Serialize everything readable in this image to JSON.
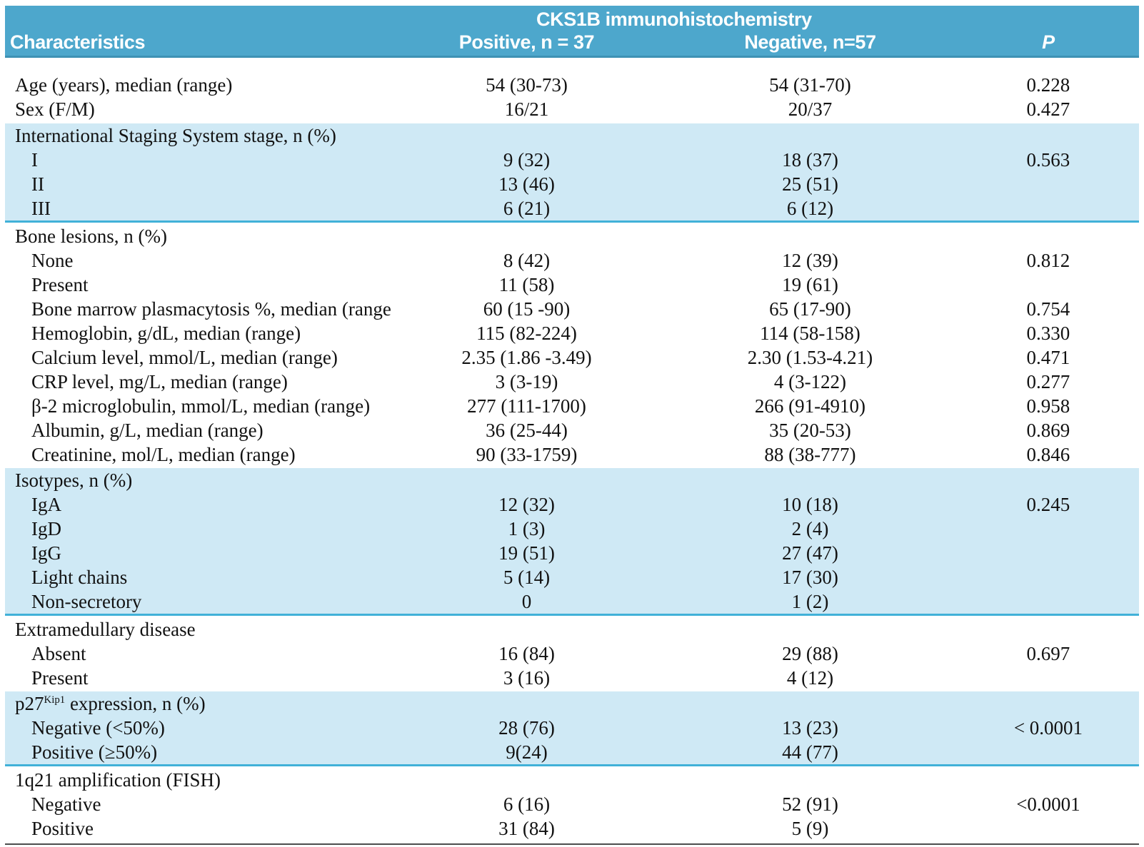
{
  "table": {
    "header": {
      "group_title": "CKS1B immunohistochemistry",
      "col_characteristics": "Characteristics",
      "col_positive": "Positive, n = 37",
      "col_negative": "Negative, n=57",
      "col_p": "P"
    },
    "colors": {
      "header_bg": "#4da7cc",
      "header_edge": "#3e92b4",
      "band_bg": "#cfe9f5",
      "band_edge": "#41b1d8",
      "text": "#121212"
    },
    "sections": [
      {
        "tone": "white",
        "rows": [
          {
            "label": "Age (years), median (range)",
            "indent": 0,
            "positive": "54 (30-73)",
            "negative": "54 (31-70)",
            "p": "0.228"
          },
          {
            "label": "Sex (F/M)",
            "indent": 0,
            "positive": "16/21",
            "negative": "20/37",
            "p": "0.427"
          }
        ]
      },
      {
        "tone": "blue",
        "rows": [
          {
            "label": "International Staging System stage, n (%)",
            "indent": 0,
            "positive": "",
            "negative": "",
            "p": ""
          },
          {
            "label": "I",
            "indent": 1,
            "positive": "9 (32)",
            "negative": "18 (37)",
            "p": "0.563"
          },
          {
            "label": "II",
            "indent": 1,
            "positive": "13 (46)",
            "negative": "25 (51)",
            "p": ""
          },
          {
            "label": "III",
            "indent": 1,
            "positive": "6 (21)",
            "negative": "6 (12)",
            "p": ""
          }
        ]
      },
      {
        "tone": "white",
        "rows": [
          {
            "label": "Bone lesions, n (%)",
            "indent": 0,
            "positive": "",
            "negative": "",
            "p": ""
          },
          {
            "label": "None",
            "indent": 1,
            "positive": "8 (42)",
            "negative": "12 (39)",
            "p": "0.812"
          },
          {
            "label": "Present",
            "indent": 1,
            "positive": "11 (58)",
            "negative": "19 (61)",
            "p": ""
          },
          {
            "label": "Bone marrow plasmacytosis %, median (range)",
            "indent": 1,
            "positive": "60 (15 -90)",
            "negative": "65 (17-90)",
            "p": "0.754"
          },
          {
            "label": "Hemoglobin, g/dL, median (range)",
            "indent": 1,
            "positive": "115 (82-224)",
            "negative": "114 (58-158)",
            "p": "0.330"
          },
          {
            "label": "Calcium level, mmol/L, median (range)",
            "indent": 1,
            "positive": "2.35 (1.86 -3.49)",
            "negative": "2.30 (1.53-4.21)",
            "p": "0.471"
          },
          {
            "label": "CRP level, mg/L, median (range)",
            "indent": 1,
            "positive": "3 (3-19)",
            "negative": "4 (3-122)",
            "p": "0.277"
          },
          {
            "label": "β-2 microglobulin, mmol/L, median (range)",
            "indent": 1,
            "positive": "277 (111-1700)",
            "negative": "266 (91-4910)",
            "p": "0.958"
          },
          {
            "label": "Albumin, g/L, median (range)",
            "indent": 1,
            "positive": "36 (25-44)",
            "negative": "35 (20-53)",
            "p": "0.869"
          },
          {
            "label": "Creatinine, mol/L, median (range)",
            "indent": 1,
            "positive": "90 (33-1759)",
            "negative": "88 (38-777)",
            "p": "0.846"
          }
        ]
      },
      {
        "tone": "blue",
        "rows": [
          {
            "label": "Isotypes, n (%)",
            "indent": 0,
            "positive": "",
            "negative": "",
            "p": ""
          },
          {
            "label": "IgA",
            "indent": 1,
            "positive": "12 (32)",
            "negative": "10 (18)",
            "p": "0.245"
          },
          {
            "label": "IgD",
            "indent": 1,
            "positive": "1 (3)",
            "negative": "2 (4)",
            "p": ""
          },
          {
            "label": "IgG",
            "indent": 1,
            "positive": "19 (51)",
            "negative": "27 (47)",
            "p": ""
          },
          {
            "label": "Light chains",
            "indent": 1,
            "positive": "5 (14)",
            "negative": "17 (30)",
            "p": ""
          },
          {
            "label": "Non-secretory",
            "indent": 1,
            "positive": "0",
            "negative": "1 (2)",
            "p": ""
          }
        ]
      },
      {
        "tone": "white",
        "rows": [
          {
            "label": "Extramedullary disease",
            "indent": 0,
            "positive": "",
            "negative": "",
            "p": ""
          },
          {
            "label": "Absent",
            "indent": 1,
            "positive": "16 (84)",
            "negative": "29 (88)",
            "p": "0.697"
          },
          {
            "label": "Present",
            "indent": 1,
            "positive": "3 (16)",
            "negative": "4 (12)",
            "p": ""
          }
        ]
      },
      {
        "tone": "blue",
        "rows": [
          {
            "label": "p27^Kip1^ expression, n (%)",
            "indent": 0,
            "positive": "",
            "negative": "",
            "p": ""
          },
          {
            "label": "Negative (<50%)",
            "indent": 1,
            "positive": "28 (76)",
            "negative": "13 (23)",
            "p": "< 0.0001"
          },
          {
            "label": "Positive (≥50%)",
            "indent": 1,
            "positive": "9(24)",
            "negative": "44 (77)",
            "p": ""
          }
        ]
      },
      {
        "tone": "white",
        "rows": [
          {
            "label": "1q21 amplification (FISH)",
            "indent": 0,
            "positive": "",
            "negative": "",
            "p": ""
          },
          {
            "label": "Negative",
            "indent": 1,
            "positive": "6 (16)",
            "negative": "52 (91)",
            "p": "<0.0001"
          },
          {
            "label": "Positive",
            "indent": 1,
            "positive": "31 (84)",
            "negative": "5 (9)",
            "p": ""
          }
        ]
      }
    ]
  }
}
